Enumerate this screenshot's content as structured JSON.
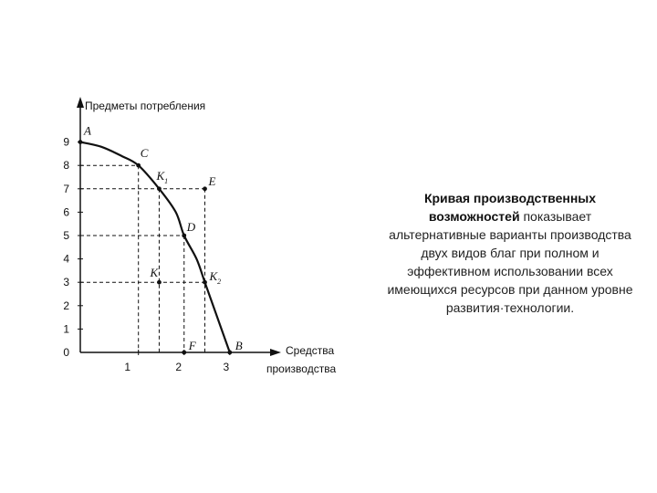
{
  "chart_data": {
    "type": "line",
    "ylabel": "Предметы потребления",
    "xlabel_line1": "Средства",
    "xlabel_line2": "производства",
    "x_ticks": [
      "1",
      "2",
      "3"
    ],
    "y_ticks": [
      "0",
      "1",
      "2",
      "3",
      "4",
      "5",
      "6",
      "7",
      "8",
      "9"
    ],
    "xlim": [
      0,
      3.8
    ],
    "ylim": [
      0,
      9.8
    ],
    "curve": [
      {
        "x": 0,
        "y": 9
      },
      {
        "x": 0.5,
        "y": 8.8
      },
      {
        "x": 1.0,
        "y": 8.4
      },
      {
        "x": 1.4,
        "y": 8.0
      },
      {
        "x": 1.9,
        "y": 7.0
      },
      {
        "x": 2.3,
        "y": 6.0
      },
      {
        "x": 2.5,
        "y": 5.0
      },
      {
        "x": 2.8,
        "y": 4.0
      },
      {
        "x": 3.0,
        "y": 3.0
      },
      {
        "x": 3.3,
        "y": 1.5
      },
      {
        "x": 3.6,
        "y": 0
      }
    ],
    "points": [
      {
        "name": "A",
        "x": 0,
        "y": 9
      },
      {
        "name": "C",
        "x": 1.4,
        "y": 8
      },
      {
        "name": "K",
        "sub": "1",
        "x": 1.9,
        "y": 7
      },
      {
        "name": "E",
        "x": 3.0,
        "y": 7
      },
      {
        "name": "D",
        "x": 2.5,
        "y": 5
      },
      {
        "name": "K",
        "x": 1.9,
        "y": 3
      },
      {
        "name": "K",
        "sub": "2",
        "x": 3.0,
        "y": 3
      },
      {
        "name": "F",
        "x": 2.5,
        "y": 0
      },
      {
        "name": "B",
        "x": 3.6,
        "y": 0
      }
    ],
    "x_tick_values": [
      1,
      2,
      3
    ],
    "tick_x_positions": [
      1.4,
      2.5,
      3.6
    ]
  },
  "description": {
    "bold": "Кривая производственных возможностей",
    "rest": " показывает альтернативные варианты производства двух видов благ при полном и эффективном использовании всех имеющихся ресурсов при данном уровне развития·технологии."
  }
}
